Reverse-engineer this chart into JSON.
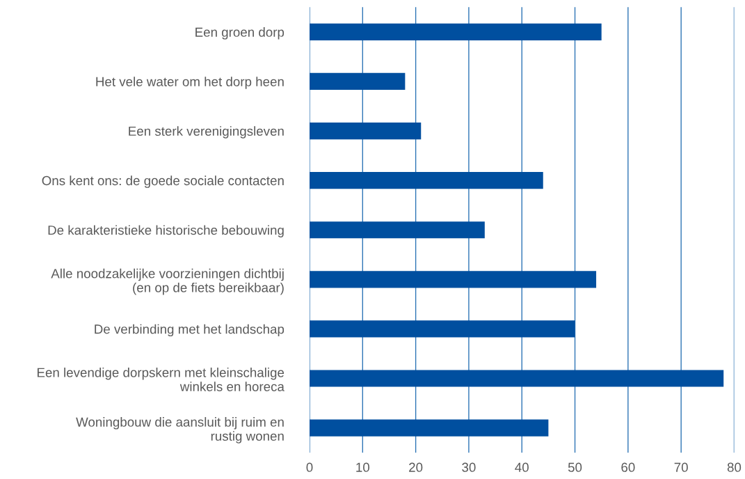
{
  "chart_data": {
    "type": "bar",
    "orientation": "horizontal",
    "categories": [
      "Een groen dorp",
      "Het vele water om het dorp heen",
      "Een sterk verenigingsleven",
      "Ons kent ons: de goede sociale contacten",
      "De karakteristieke historische bebouwing",
      "Alle noodzakelijke voorzieningen dichtbij\n(en op de fiets bereikbaar)",
      "De verbinding met het landschap",
      "Een levendige dorpskern met kleinschalige\nwinkels en horeca",
      "Woningbouw die aansluit bij ruim en\nrustig wonen"
    ],
    "values": [
      55,
      18,
      21,
      44,
      33,
      54,
      50,
      78,
      45
    ],
    "color": "#004f9f",
    "xlim": [
      0,
      80
    ],
    "xticks": [
      0,
      10,
      20,
      30,
      40,
      50,
      60,
      70,
      80
    ],
    "grid": "x",
    "legend": false
  }
}
